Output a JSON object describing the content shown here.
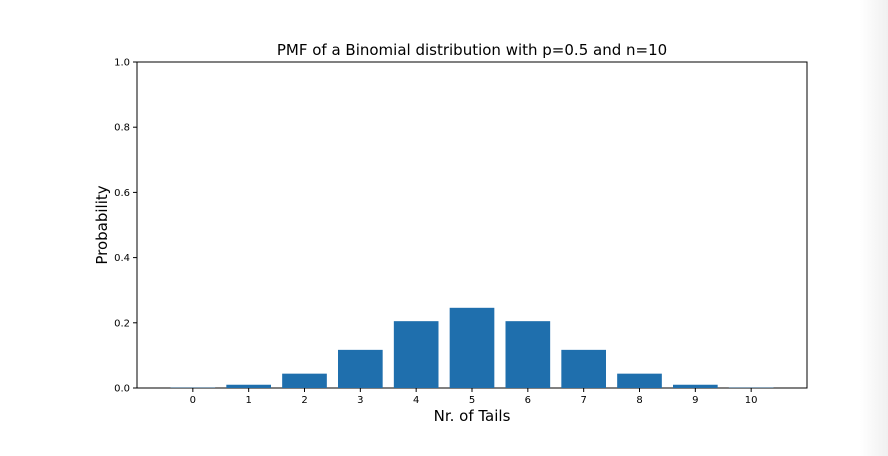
{
  "chart_data": {
    "type": "bar",
    "title": "PMF of a Binomial distribution with p=0.5 and n=10",
    "xlabel": "Nr. of Tails",
    "ylabel": "Probability",
    "categories": [
      "0",
      "1",
      "2",
      "3",
      "4",
      "5",
      "6",
      "7",
      "8",
      "9",
      "10"
    ],
    "values": [
      0.001,
      0.01,
      0.044,
      0.117,
      0.205,
      0.246,
      0.205,
      0.117,
      0.044,
      0.01,
      0.001
    ],
    "xlim": [
      -1,
      11
    ],
    "ylim": [
      0,
      1.0
    ],
    "yticks": [
      "0.0",
      "0.2",
      "0.4",
      "0.6",
      "0.8",
      "1.0"
    ],
    "bar_color": "#1f6fad",
    "grid": false,
    "legend": "none"
  }
}
